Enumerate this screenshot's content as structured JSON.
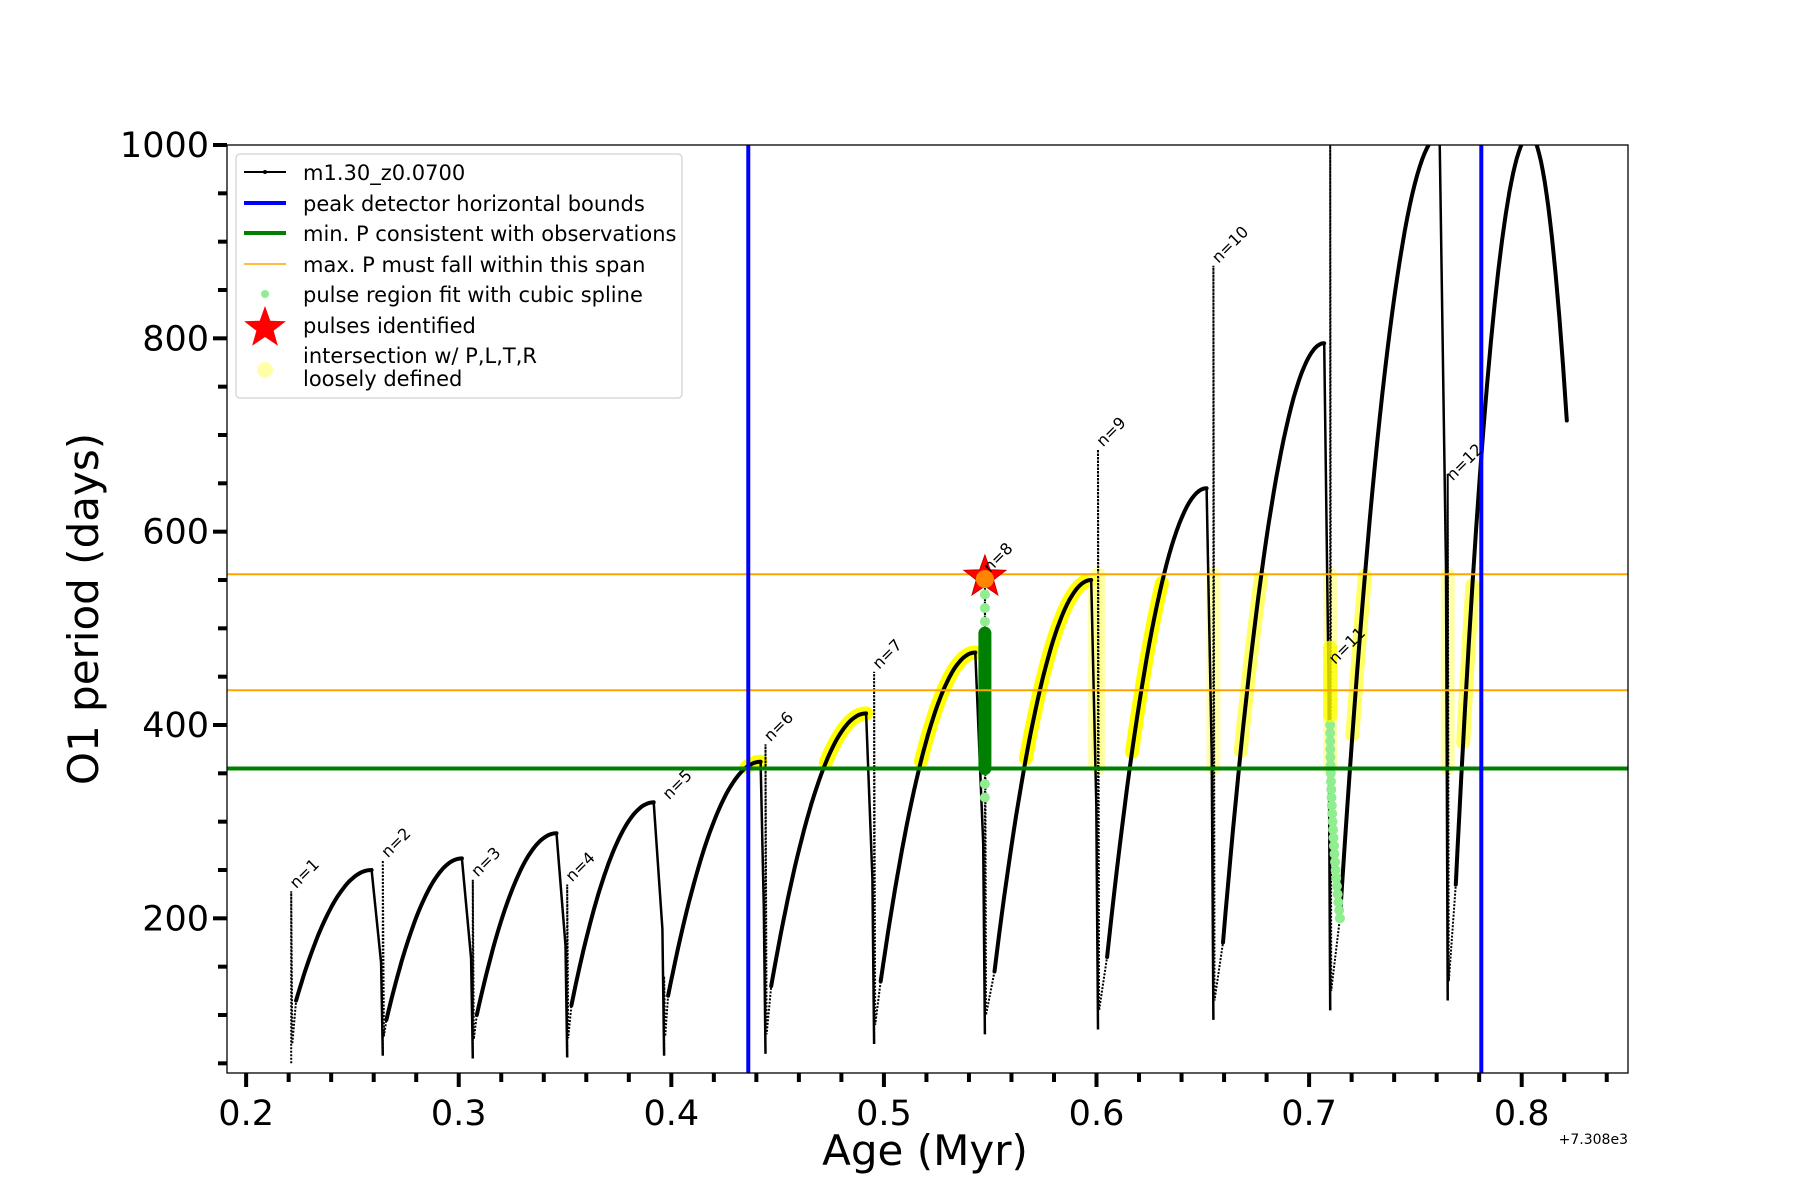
{
  "chart_data": {
    "type": "line",
    "xlabel": "Age (Myr)",
    "ylabel": "O1 period (days)",
    "x_offset_text": "+7.308e3",
    "xlim": [
      0.191,
      0.85
    ],
    "ylim": [
      40,
      1000
    ],
    "xticks": [
      0.2,
      0.3,
      0.4,
      0.5,
      0.6,
      0.7,
      0.8
    ],
    "xtick_labels": [
      "0.2",
      "0.3",
      "0.4",
      "0.5",
      "0.6",
      "0.7",
      "0.8"
    ],
    "x_minor_step": 0.02,
    "yticks": [
      200,
      400,
      600,
      800,
      1000
    ],
    "ytick_labels": [
      "200",
      "400",
      "600",
      "800",
      "1000"
    ],
    "y_minor_step": 50,
    "grid": false,
    "legend_placement": "top-left",
    "legend": [
      {
        "label": "m1.30_z0.0700",
        "kind": "line-marker",
        "color": "#000000"
      },
      {
        "label": "peak detector horizontal bounds",
        "kind": "line",
        "color": "#0000ff"
      },
      {
        "label": "min. P consistent with observations",
        "kind": "line",
        "color": "#008000"
      },
      {
        "label": "max. P must fall within this span",
        "kind": "thin-line",
        "color": "#ffa500"
      },
      {
        "label": "pulse region fit with cubic spline",
        "kind": "dot",
        "color": "#90ee90"
      },
      {
        "label": "pulses identified",
        "kind": "star",
        "color": "#ff0000"
      },
      {
        "label": "intersection w/ P,L,T,R",
        "label2": "loosely defined",
        "kind": "circle",
        "color": "#ffffaa"
      }
    ],
    "vertical_lines": [
      {
        "name": "peak-detector-bound-left",
        "x": 0.4362,
        "color": "#0000ff"
      },
      {
        "name": "peak-detector-bound-right",
        "x": 0.781,
        "color": "#0000ff"
      }
    ],
    "horizontal_lines": [
      {
        "name": "min-period-line",
        "y": 355,
        "color": "#008000"
      },
      {
        "name": "max-period-span-low",
        "y": 436,
        "color": "#ffa500"
      },
      {
        "name": "max-period-span-high",
        "y": 556,
        "color": "#ffa500"
      }
    ],
    "pulses": [
      {
        "label": "n=1",
        "age": 0.2212,
        "bottom": 50,
        "top": 228,
        "min_age": 0.2235,
        "min": 115,
        "peak_age": 0.259,
        "peak": 250,
        "arc_highlight": "none",
        "spike_highlight": "none"
      },
      {
        "label": "n=2",
        "age": 0.2643,
        "bottom": 58,
        "top": 260,
        "min_age": 0.266,
        "min": 95,
        "peak_age": 0.3015,
        "peak": 262,
        "arc_highlight": "none",
        "spike_highlight": "none"
      },
      {
        "label": "n=3",
        "age": 0.3066,
        "bottom": 55,
        "top": 240,
        "min_age": 0.3085,
        "min": 100,
        "peak_age": 0.346,
        "peak": 288,
        "arc_highlight": "none",
        "spike_highlight": "none"
      },
      {
        "label": "n=4",
        "age": 0.351,
        "bottom": 56,
        "top": 235,
        "min_age": 0.353,
        "min": 110,
        "peak_age": 0.3917,
        "peak": 320,
        "arc_highlight": "none",
        "spike_highlight": "none"
      },
      {
        "label": "n=5",
        "age": 0.3966,
        "bottom": 58,
        "top": 140,
        "min_age": 0.3985,
        "min": 120,
        "peak_age": 0.442,
        "peak": 362,
        "arc_highlight": "strong",
        "spike_highlight": "none"
      },
      {
        "label": "n=6",
        "age": 0.4443,
        "bottom": 60,
        "top": 380,
        "min_age": 0.447,
        "min": 130,
        "peak_age": 0.4916,
        "peak": 412,
        "arc_highlight": "strong",
        "spike_highlight": "none"
      },
      {
        "label": "n=7",
        "age": 0.4954,
        "bottom": 70,
        "top": 455,
        "min_age": 0.4985,
        "min": 135,
        "peak_age": 0.543,
        "peak": 475,
        "arc_highlight": "strong",
        "spike_highlight": "none"
      },
      {
        "label": "n=8",
        "age": 0.5475,
        "bottom": 80,
        "top": 555,
        "min_age": 0.552,
        "min": 145,
        "peak_age": 0.5975,
        "peak": 550,
        "arc_highlight": "strong",
        "spike_highlight": "green"
      },
      {
        "label": "n=9",
        "age": 0.6007,
        "bottom": 85,
        "top": 685,
        "min_age": 0.605,
        "min": 160,
        "peak_age": 0.6518,
        "peak": 645,
        "arc_highlight": "strong",
        "spike_highlight": "faint"
      },
      {
        "label": "n=10",
        "age": 0.655,
        "bottom": 95,
        "top": 875,
        "min_age": 0.6595,
        "min": 175,
        "peak_age": 0.7071,
        "peak": 795,
        "arc_highlight": "faint",
        "spike_highlight": "faint"
      },
      {
        "label": "n=11",
        "age": 0.7099,
        "bottom": 105,
        "top": 1010,
        "min_age": 0.7145,
        "min": 200,
        "peak_age": 0.7614,
        "peak": 1010,
        "arc_highlight": "faint",
        "spike_highlight": "faint-green"
      },
      {
        "label": "n=12",
        "age": 0.7652,
        "bottom": 115,
        "top": 660,
        "min_age": 0.769,
        "min": 235,
        "peak_age": 0.8038,
        "peak": 1010,
        "arc_highlight": "faint",
        "spike_highlight": "faint"
      }
    ],
    "curve_end": {
      "age": 0.8212,
      "value": 715
    },
    "pulse_identified": {
      "x": 0.5475,
      "y": 553
    },
    "spline_fit_point_range_n8": [
      325,
      555
    ],
    "spline_fit_dense_range_n8": [
      355,
      495
    ],
    "spline_fit_range_n11": [
      200,
      400
    ]
  }
}
